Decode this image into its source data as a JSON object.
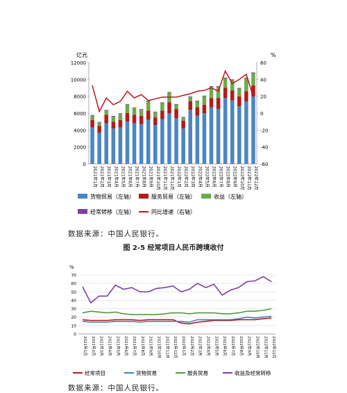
{
  "figure_title": "图 2-5  经常项目人民币跨境收付",
  "source_note_1": "数据来源：中国人民银行。",
  "source_note_2": "数据来源：中国人民银行。",
  "colors": {
    "goods": "#4a86c5",
    "services": "#b31c1c",
    "income": "#6aac4a",
    "transfers": "#7b3fa8",
    "growth": "#c0141c",
    "line_current": "#b31c1c",
    "line_goods": "#3f7fc4",
    "line_services": "#4f9a3a",
    "line_income": "#7b3fa8"
  },
  "chart_data": [
    {
      "type": "bar",
      "stacked": true,
      "y_unit_left": "亿元",
      "y_unit_right": "%",
      "ylim_left": [
        0,
        12000
      ],
      "yticks_left": [
        "0",
        "2000",
        "4000",
        "6000",
        "8000",
        "10000",
        "12000"
      ],
      "ylim_right": [
        -60,
        60
      ],
      "yticks_right": [
        "-60",
        "-40",
        "-20",
        "0",
        "20",
        "40",
        "60"
      ],
      "categories": [
        "2021年1月",
        "2021年2月",
        "2021年3月",
        "2021年4月",
        "2021年5月",
        "2021年6月",
        "2021年7月",
        "2021年8月",
        "2021年9月",
        "2021年10月",
        "2021年11月",
        "2021年12月",
        "2022年1月",
        "2022年2月",
        "2022年3月",
        "2022年4月",
        "2022年5月",
        "2022年6月",
        "2022年7月",
        "2022年8月",
        "2022年9月",
        "2022年10月",
        "2022年11月",
        "2022年12月"
      ],
      "series": [
        {
          "name": "货物贸易（左轴）",
          "kind": "bar",
          "values": [
            4300,
            3700,
            4800,
            4200,
            4300,
            5000,
            4800,
            4700,
            5200,
            4600,
            5300,
            6000,
            5400,
            4200,
            6400,
            5700,
            6000,
            6700,
            6500,
            7800,
            7500,
            6800,
            7400,
            8000
          ]
        },
        {
          "name": "服务贸易（左轴）",
          "kind": "bar",
          "values": [
            900,
            800,
            1000,
            800,
            900,
            1000,
            1000,
            1000,
            1100,
            900,
            1000,
            1300,
            1100,
            900,
            1000,
            1000,
            1000,
            1100,
            1300,
            1200,
            1200,
            1200,
            1200,
            1300
          ]
        },
        {
          "name": "收益（左轴）",
          "kind": "bar",
          "values": [
            500,
            400,
            500,
            600,
            700,
            1000,
            800,
            700,
            1100,
            600,
            900,
            1100,
            500,
            400,
            500,
            700,
            1000,
            1300,
            1300,
            1100,
            1200,
            900,
            1500,
            1400
          ]
        },
        {
          "name": "经常转移（左轴）",
          "kind": "bar",
          "values": [
            80,
            60,
            80,
            80,
            80,
            80,
            80,
            80,
            80,
            80,
            80,
            100,
            80,
            60,
            80,
            80,
            80,
            100,
            100,
            100,
            100,
            100,
            100,
            120
          ]
        },
        {
          "name": "同比增速（右轴）",
          "kind": "line",
          "values": [
            33,
            2,
            18,
            10,
            14,
            26,
            18,
            22,
            15,
            17,
            19,
            19,
            19,
            21,
            23,
            26,
            27,
            30,
            26,
            50,
            35,
            40,
            46,
            19
          ]
        }
      ],
      "legend": [
        "货物贸易（左轴）",
        "服务贸易（左轴）",
        "收益（左轴）",
        "经常转移（左轴）",
        "同比增速（右轴）"
      ],
      "legend_position": "bottom"
    },
    {
      "type": "line",
      "y_unit": "%",
      "ylim": [
        0,
        70
      ],
      "yticks": [
        "0",
        "10",
        "20",
        "30",
        "40",
        "50",
        "60",
        "70"
      ],
      "categories": [
        "2021年1月",
        "2021年2月",
        "2021年3月",
        "2021年4月",
        "2021年5月",
        "2021年6月",
        "2021年7月",
        "2021年8月",
        "2021年9月",
        "2021年10月",
        "2021年11月",
        "2021年12月",
        "2022年1月",
        "2022年2月",
        "2022年3月",
        "2022年4月",
        "2022年5月",
        "2022年6月",
        "2022年7月",
        "2022年8月",
        "2022年9月",
        "2022年10月",
        "2022年11月",
        "2022年12月"
      ],
      "series": [
        {
          "name": "经常项目",
          "values": [
            17,
            16,
            16,
            16,
            17,
            17,
            17,
            16,
            17,
            17,
            17,
            17,
            13,
            12,
            14,
            15,
            16,
            16,
            16,
            17,
            17,
            17,
            18,
            19
          ]
        },
        {
          "name": "货物贸易",
          "values": [
            15,
            14,
            14,
            14,
            15,
            15,
            15,
            14,
            15,
            15,
            15,
            15,
            15,
            14,
            17,
            17,
            17,
            17,
            17,
            18,
            20,
            19,
            20,
            21
          ]
        },
        {
          "name": "服务贸易",
          "values": [
            25,
            27,
            26,
            25,
            26,
            24,
            23,
            23,
            23,
            23,
            24,
            25,
            25,
            24,
            25,
            25,
            25,
            24,
            24,
            25,
            27,
            27,
            28,
            30
          ]
        },
        {
          "name": "收益及经常转移",
          "values": [
            56,
            37,
            45,
            45,
            58,
            53,
            55,
            50,
            50,
            54,
            55,
            57,
            50,
            53,
            60,
            55,
            59,
            46,
            52,
            55,
            62,
            63,
            68,
            62
          ]
        }
      ],
      "legend": [
        "经常项目",
        "货物贸易",
        "服务贸易",
        "收益及经常转移"
      ],
      "legend_position": "bottom"
    }
  ]
}
